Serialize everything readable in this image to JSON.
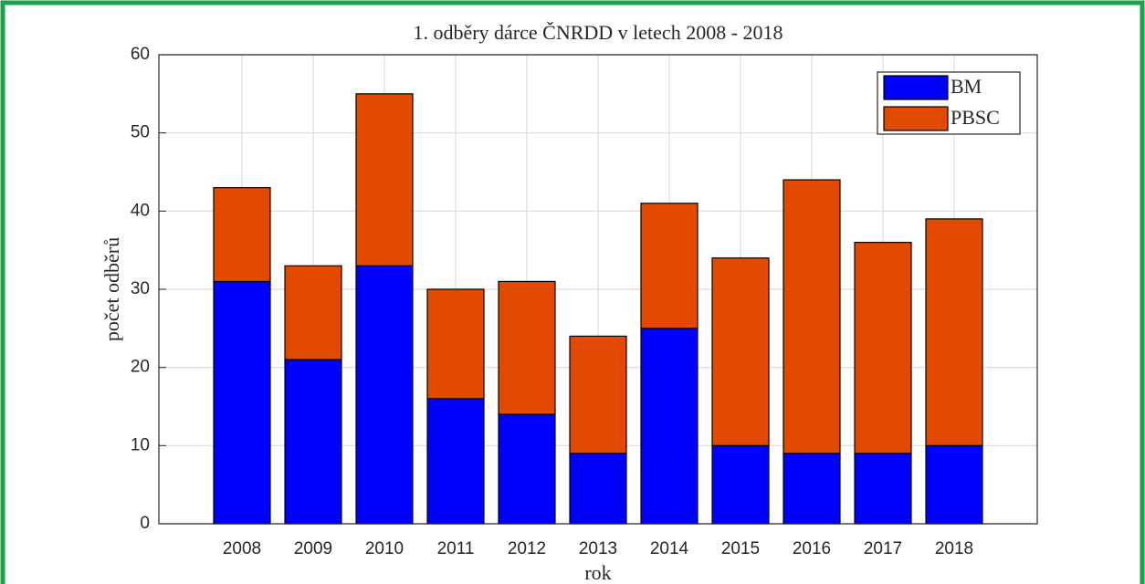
{
  "chart_data": {
    "type": "stacked_bar",
    "title": "1. odběry dárce ČNRDD v letech 2008 - 2018",
    "x_label": "rok",
    "y_label": "počet odběrů",
    "categories": [
      "2008",
      "2009",
      "2010",
      "2011",
      "2012",
      "2013",
      "2014",
      "2015",
      "2016",
      "2017",
      "2018"
    ],
    "series": [
      {
        "name": "BM",
        "color": "#0000ff",
        "values": [
          31,
          21,
          33,
          16,
          14,
          9,
          25,
          10,
          9,
          9,
          10
        ]
      },
      {
        "name": "PBSC",
        "color": "#e24a00",
        "values": [
          12,
          12,
          22,
          14,
          17,
          15,
          16,
          24,
          35,
          27,
          29
        ]
      }
    ],
    "ylim": [
      0,
      60
    ],
    "yticks": [
      0,
      10,
      20,
      30,
      40,
      50,
      60
    ],
    "grid": true,
    "legend": "upper right"
  }
}
